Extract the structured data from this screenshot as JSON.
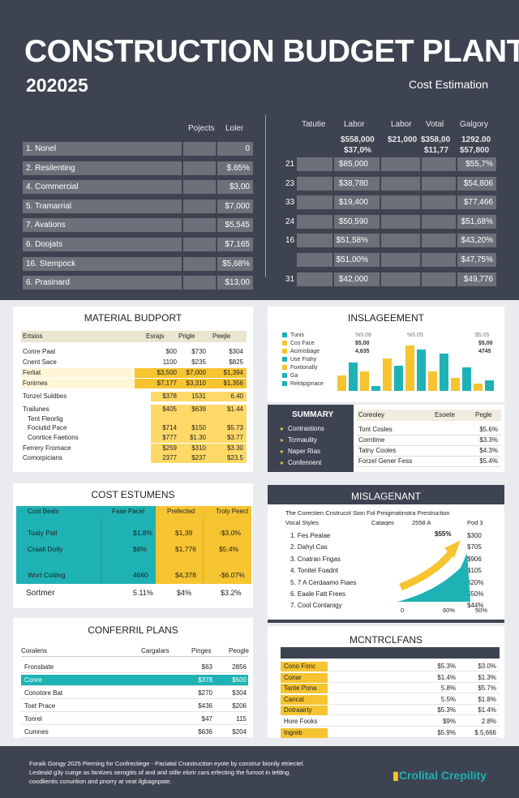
{
  "header": {
    "title": "CONSTRUCTION BUDGET PLANT",
    "year": "202025",
    "subtitle": "Cost Estimation"
  },
  "left_table": {
    "col1": "Pojects",
    "col2": "Loler",
    "rows": [
      {
        "label": "1. Nonel",
        "value": "0"
      },
      {
        "label": "2. Resilenting",
        "value": "$.65%"
      },
      {
        "label": "4. Commercial",
        "value": "$3,00"
      },
      {
        "label": "5. Tramarrial",
        "value": "$7,000"
      },
      {
        "label": "7. Avations",
        "value": "$5,545"
      },
      {
        "label": "6. Doojats",
        "value": "$7,165"
      },
      {
        "label": "16. Stempock",
        "value": "$5,68%"
      },
      {
        "label": "6. Prasinard",
        "value": "$13,00"
      }
    ]
  },
  "right_table": {
    "cols": [
      "Tatutie",
      "Labor",
      "Labor",
      "Votal",
      "Galgory"
    ],
    "top_a": [
      "$558,000",
      "$37,0%"
    ],
    "top_b": "$21,000",
    "top_c": [
      "$358,00",
      "$11,77"
    ],
    "top_d": [
      "1292.00",
      "$57,800"
    ],
    "rows": [
      {
        "n": "21",
        "a": "$85,000",
        "b": "$55,7%"
      },
      {
        "n": "23",
        "a": "$38,780",
        "b": "$54,806"
      },
      {
        "n": "33",
        "a": "$19,400",
        "b": "$77,466"
      },
      {
        "n": "24",
        "a": "$50,590",
        "b": "$51,68%"
      },
      {
        "n": "16",
        "a": "$51,58%",
        "b": "$43,20%"
      },
      {
        "n": "",
        "a": "$51,00%",
        "b": "$47,75%"
      },
      {
        "n": "31",
        "a": "$42,000",
        "b": "$49,776"
      }
    ]
  },
  "material": {
    "title": "MATERIAL BUDPORT",
    "headers": [
      "Ertsios",
      "Esrajs",
      "Prigle",
      "Peejle"
    ],
    "rows": [
      {
        "name": "Conre Paal",
        "a": "$00",
        "b": "$730",
        "c": "$304",
        "hl": ""
      },
      {
        "name": "Cnent Sace",
        "a": "1100",
        "b": "$235",
        "c": "$825",
        "hl": ""
      },
      {
        "name": "Ferliat",
        "a": "$3,500",
        "b": "$7,000",
        "c": "$1,394",
        "hl": "y"
      },
      {
        "name": "Fonimes",
        "a": "$7,177",
        "b": "$3,310",
        "c": "$1,356",
        "hl": "y"
      },
      {
        "name": "Tonzel Suldbes",
        "a": "$378",
        "b": "1531",
        "c": "6.40",
        "hl": "p"
      },
      {
        "name": "Trailunes",
        "a": "$405",
        "b": "$639",
        "c": "$1.44",
        "hl": "p"
      },
      {
        "name": "Tent Fleorlig",
        "a": "",
        "b": "",
        "c": "",
        "hl": "p"
      },
      {
        "name": "Fociutid Pace",
        "a": "$714",
        "b": "$150",
        "c": "$5.73",
        "hl": "p"
      },
      {
        "name": "Conrtice Faetions",
        "a": "$777",
        "b": "$1.30",
        "c": "$3.77",
        "hl": "p"
      },
      {
        "name": "Ferrery Fromace",
        "a": "$259",
        "b": "$310",
        "c": "$3.30",
        "hl": "p"
      },
      {
        "name": "Comorpicians",
        "a": "2377",
        "b": "$237",
        "c": "$23.5",
        "hl": "p"
      }
    ]
  },
  "inslagement": {
    "title": "INSLAGEEMENT",
    "legend": [
      "Tunis",
      "Cos Face",
      "Acimisbage",
      "Use Frahy",
      "Foxtionally",
      "Ga",
      "Rektipgmace"
    ],
    "values_label_a": [
      "$5,00",
      "4,635"
    ],
    "values_label_b": [
      "$5,00",
      "4745"
    ],
    "tick_labels": [
      "%5.08",
      "%5.05",
      "$5.05"
    ],
    "chart_data": {
      "type": "bar",
      "series": [
        {
          "values": [
            30,
            55,
            38,
            10,
            62,
            48,
            88,
            80,
            38,
            72,
            25,
            45,
            14,
            20
          ]
        }
      ],
      "colors": [
        "#f6c431",
        "#1fb2b5"
      ]
    }
  },
  "summary": {
    "title": "SUMMARY",
    "items": [
      "Contrastions",
      "Tcrmaulity",
      "Naper Rias",
      "Confennent"
    ],
    "headers": [
      "Coreoley",
      "Esoete",
      "Pegle"
    ],
    "rows": [
      {
        "name": "Tont Cosles",
        "v": "$5.6%"
      },
      {
        "name": "Corntime",
        "v": "$3.3%"
      },
      {
        "name": "Tatny Cooles",
        "v": "$4.3%"
      },
      {
        "name": "Forzel Gener Fess",
        "v": "$5.4%"
      }
    ]
  },
  "cost_est": {
    "title": "COST ESTUMENS",
    "headers": [
      "Cost Beals",
      "Fase Pacel",
      "Prefected",
      "Troly Peect"
    ],
    "rows": [
      {
        "name": "Toaly Pall",
        "a": "$1,8%",
        "b": "$1,39",
        "c": "-$3.0%"
      },
      {
        "name": "Craall Dolly",
        "a": "$8%",
        "b": "$1,776",
        "c": "$5.4%"
      },
      {
        "name": "Wort Cotilng",
        "a": "4660",
        "b": "$4,378",
        "c": "-$6.07%"
      }
    ],
    "footer": {
      "name": "Sortmer",
      "a": "5.11%",
      "b": "$4%",
      "c": "$3.2%"
    }
  },
  "mislagement": {
    "title": "MISLAGENANT",
    "subtitle": "The Corectien Cnstrucol Sion Fol Pmigmatinstra Prestruction",
    "headers": [
      "Vocal Styles",
      "Cataqes",
      "2558 A",
      "Pod 3"
    ],
    "items": [
      "1. Fes Pealae",
      "2. Dahyl Cas",
      "3. Cnatran Fngas",
      "4. Tonitel Foadnt",
      "5. 7 A Cerdaamo Fiaes",
      "6. Eaale Fatt Frees",
      "7. Cool Contanigy"
    ],
    "vals": [
      "$300",
      "$705",
      "$906",
      "$105",
      "$20%",
      "$50%",
      "$44%"
    ],
    "highlight": "$55%",
    "axis": [
      "0",
      "60%",
      "50%"
    ]
  },
  "plans": {
    "title": "CONFERRIL PLANS",
    "headers": [
      "Coralens",
      "Cargalars",
      "Pinges",
      "Peogle"
    ],
    "rows": [
      {
        "name": "Fronsbate",
        "a": "$63",
        "b": "2856",
        "hl": ""
      },
      {
        "name": "Conre",
        "a": "$378",
        "b": "$500",
        "hl": "t"
      },
      {
        "name": "Conotore Bat",
        "a": "$270",
        "b": "$304",
        "hl": ""
      },
      {
        "name": "Toet Prace",
        "a": "$436",
        "b": "$206",
        "hl": ""
      },
      {
        "name": "Tonrel",
        "a": "$47",
        "b": "115",
        "hl": ""
      },
      {
        "name": "Cumnes",
        "a": "$636",
        "b": "$204",
        "hl": ""
      }
    ]
  },
  "mont": {
    "title": "MCNTRCLFANS",
    "rows": [
      {
        "name": "Cono Fonc",
        "a": "$5.3%",
        "b": "$3.0%",
        "hl": "y"
      },
      {
        "name": "Conar",
        "a": "$1.4%",
        "b": "$1.3%",
        "hl": "y"
      },
      {
        "name": "Tante Pona",
        "a": "5.8%",
        "b": "$5.7%",
        "hl": "y"
      },
      {
        "name": "Cancal",
        "a": "5.5%",
        "b": "$1.8%",
        "hl": "y"
      },
      {
        "name": "Dotraairty",
        "a": "$5.3%",
        "b": "$1.4%",
        "hl": "y"
      },
      {
        "name": "Hore Fooks",
        "a": "$9%",
        "b": "2.8%",
        "hl": ""
      },
      {
        "name": "Ingreb",
        "a": "$5.9%",
        "b": "$.5,666",
        "hl": "y"
      }
    ]
  },
  "footer": {
    "lines": [
      "Foraik Gongy 2025  Pieming for Confrectiege -  Paciatal Cnastruction eyote by construr bionily etriectel.",
      "Lesleald g3y cuirge as fantizes serogtiis of and arid stille elorir cars erfecting the furroot in tefdng.",
      "coodlientis conurition and pnorry at veat ilgbagnpate."
    ],
    "brand": "Crolital Crepility"
  }
}
